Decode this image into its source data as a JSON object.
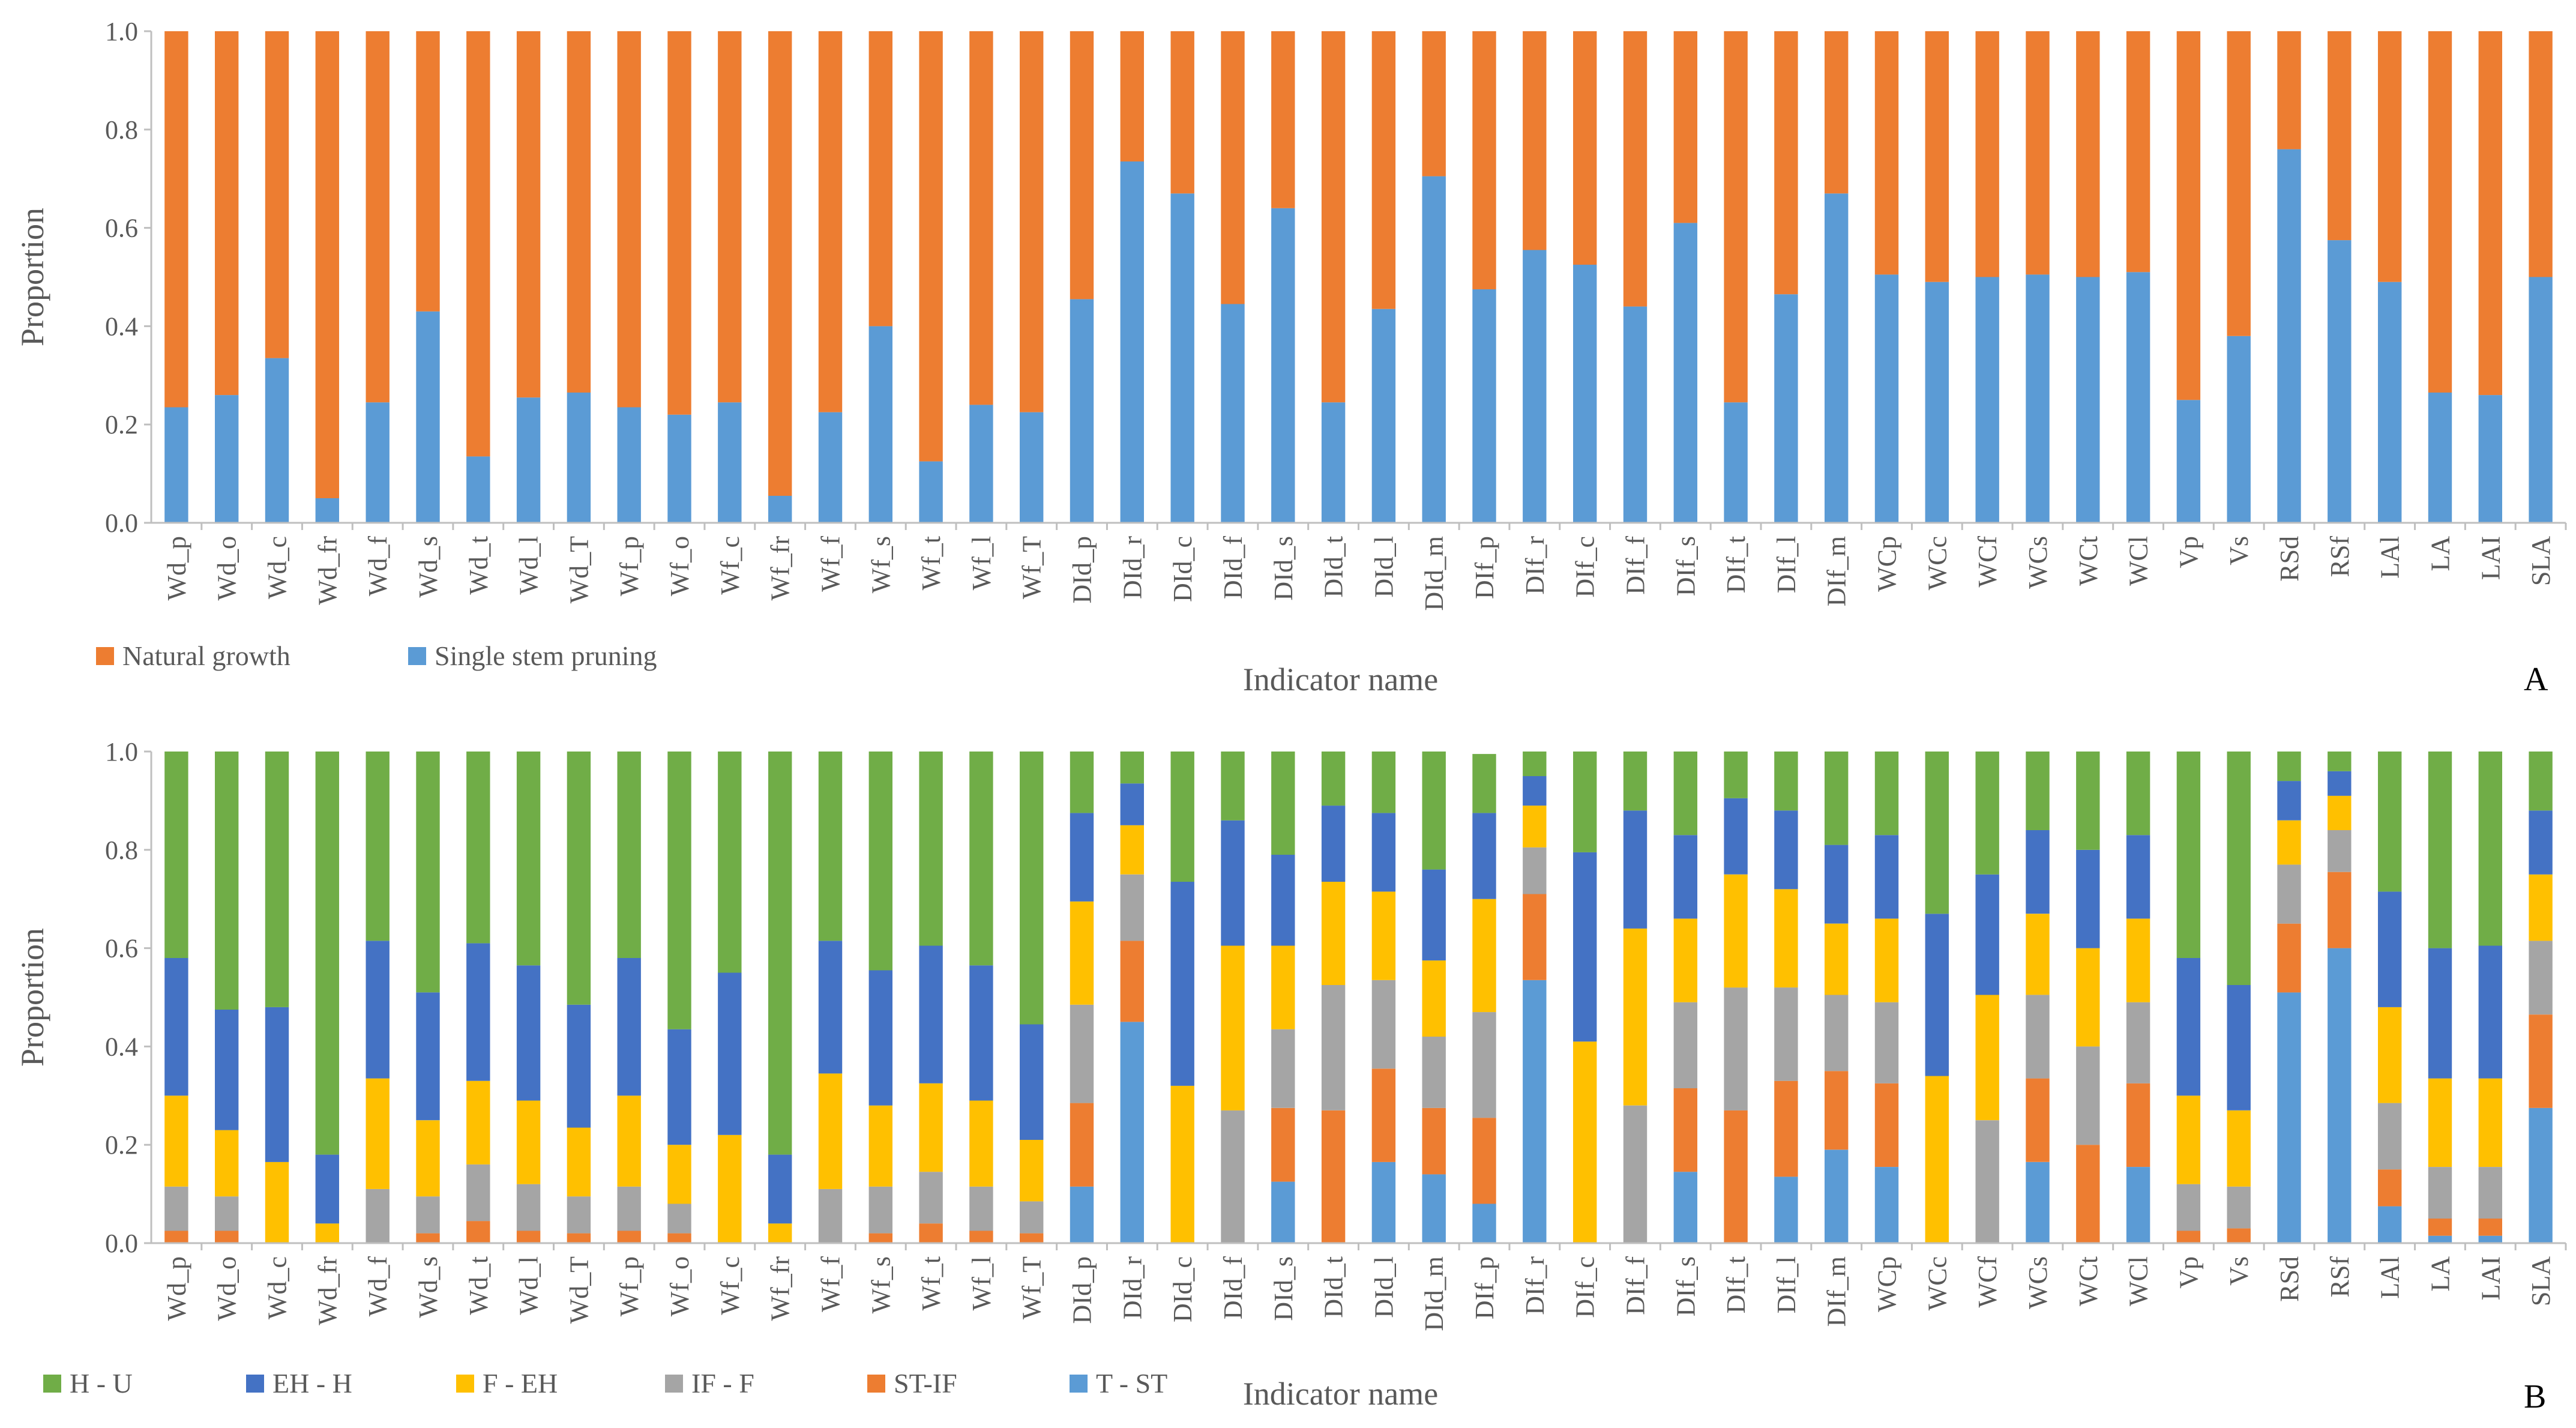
{
  "chart_data": [
    {
      "type": "bar",
      "stacked": true,
      "panel_label": "A",
      "xlabel": "Indicator name",
      "ylabel": "Proportion",
      "ylim": [
        0,
        1
      ],
      "yticks": [
        "0.0",
        "0.2",
        "0.4",
        "0.6",
        "0.8",
        "1.0"
      ],
      "grid": false,
      "legend_position": "bottom-left",
      "categories": [
        "Wd_p",
        "Wd_o",
        "Wd_c",
        "Wd_fr",
        "Wd_f",
        "Wd_s",
        "Wd_t",
        "Wd_l",
        "Wd_T",
        "Wf_p",
        "Wf_o",
        "Wf_c",
        "Wf_fr",
        "Wf_f",
        "Wf_s",
        "Wf_t",
        "Wf_l",
        "Wf_T",
        "DId_p",
        "DId_r",
        "DId_c",
        "DId_f",
        "DId_s",
        "DId_t",
        "DId_l",
        "DId_m",
        "DIf_p",
        "DIf_r",
        "DIf_c",
        "DIf_f",
        "DIf_s",
        "DIf_t",
        "DIf_l",
        "DIf_m",
        "WCp",
        "WCc",
        "WCf",
        "WCs",
        "WCt",
        "WCl",
        "Vp",
        "Vs",
        "RSd",
        "RSf",
        "LAl",
        "LA",
        "LAI",
        "SLA"
      ],
      "series": [
        {
          "name": "Single stem pruning",
          "color": "#5B9BD5",
          "values": [
            0.235,
            0.26,
            0.335,
            0.05,
            0.245,
            0.43,
            0.135,
            0.255,
            0.265,
            0.235,
            0.22,
            0.245,
            0.055,
            0.225,
            0.4,
            0.125,
            0.24,
            0.225,
            0.455,
            0.735,
            0.67,
            0.445,
            0.64,
            0.245,
            0.435,
            0.705,
            0.475,
            0.555,
            0.525,
            0.44,
            0.61,
            0.245,
            0.465,
            0.67,
            0.505,
            0.49,
            0.5,
            0.505,
            0.5,
            0.51,
            0.25,
            0.38,
            0.76,
            0.575,
            0.49,
            0.265,
            0.26,
            0.5
          ]
        },
        {
          "name": "Natural growth",
          "color": "#ED7D31",
          "values": [
            0.765,
            0.74,
            0.665,
            0.95,
            0.755,
            0.57,
            0.865,
            0.745,
            0.735,
            0.765,
            0.78,
            0.755,
            0.945,
            0.775,
            0.6,
            0.875,
            0.76,
            0.775,
            0.545,
            0.265,
            0.33,
            0.555,
            0.36,
            0.755,
            0.565,
            0.295,
            0.525,
            0.445,
            0.475,
            0.56,
            0.39,
            0.755,
            0.535,
            0.33,
            0.495,
            0.51,
            0.5,
            0.495,
            0.5,
            0.49,
            0.75,
            0.62,
            0.24,
            0.425,
            0.51,
            0.735,
            0.74,
            0.5
          ]
        }
      ]
    },
    {
      "type": "bar",
      "stacked": true,
      "panel_label": "B",
      "xlabel": "Indicator name",
      "ylabel": "Proportion",
      "ylim": [
        0,
        1
      ],
      "yticks": [
        "0.0",
        "0.2",
        "0.4",
        "0.6",
        "0.8",
        "1.0"
      ],
      "grid": false,
      "legend_position": "bottom-left",
      "categories": [
        "Wd_p",
        "Wd_o",
        "Wd_c",
        "Wd_fr",
        "Wd_f",
        "Wd_s",
        "Wd_t",
        "Wd_l",
        "Wd_T",
        "Wf_p",
        "Wf_o",
        "Wf_c",
        "Wf_fr",
        "Wf_f",
        "Wf_s",
        "Wf_t",
        "Wf_l",
        "Wf_T",
        "DId_p",
        "DId_r",
        "DId_c",
        "DId_f",
        "DId_s",
        "DId_t",
        "DId_l",
        "DId_m",
        "DIf_p",
        "DIf_r",
        "DIf_c",
        "DIf_f",
        "DIf_s",
        "DIf_t",
        "DIf_l",
        "DIf_m",
        "WCp",
        "WCc",
        "WCf",
        "WCs",
        "WCt",
        "WCl",
        "Vp",
        "Vs",
        "RSd",
        "RSf",
        "LAl",
        "LA",
        "LAI",
        "SLA"
      ],
      "series": [
        {
          "name": "T - ST",
          "color": "#5B9BD5",
          "values": [
            0,
            0,
            0,
            0,
            0,
            0,
            0,
            0,
            0,
            0,
            0,
            0,
            0,
            0,
            0,
            0,
            0,
            0,
            0.115,
            0.45,
            0,
            0,
            0.125,
            0,
            0.165,
            0.14,
            0.08,
            0.535,
            0,
            0,
            0.145,
            0,
            0.135,
            0.19,
            0.155,
            0,
            0,
            0.165,
            0,
            0.155,
            0,
            0,
            0.51,
            0.6,
            0.075,
            0.015,
            0.015,
            0.275
          ]
        },
        {
          "name": "ST-IF",
          "color": "#ED7D31",
          "values": [
            0.025,
            0.025,
            0,
            0,
            0,
            0.02,
            0.045,
            0.025,
            0.02,
            0.025,
            0.02,
            0,
            0,
            0,
            0.02,
            0.04,
            0.025,
            0.02,
            0.17,
            0.165,
            0,
            0,
            0.15,
            0.27,
            0.19,
            0.135,
            0.175,
            0.175,
            0,
            0,
            0.17,
            0.27,
            0.195,
            0.16,
            0.17,
            0,
            0,
            0.17,
            0.2,
            0.17,
            0.025,
            0.03,
            0.14,
            0.155,
            0.075,
            0.035,
            0.035,
            0.19
          ]
        },
        {
          "name": "IF - F",
          "color": "#A5A5A5",
          "values": [
            0.09,
            0.07,
            0,
            0,
            0.11,
            0.075,
            0.115,
            0.095,
            0.075,
            0.09,
            0.06,
            0,
            0,
            0.11,
            0.095,
            0.105,
            0.09,
            0.065,
            0.2,
            0.135,
            0,
            0.27,
            0.16,
            0.255,
            0.18,
            0.145,
            0.215,
            0.095,
            0,
            0.28,
            0.175,
            0.25,
            0.19,
            0.155,
            0.165,
            0,
            0.25,
            0.17,
            0.2,
            0.165,
            0.095,
            0.085,
            0.12,
            0.085,
            0.135,
            0.105,
            0.105,
            0.15
          ]
        },
        {
          "name": "F - EH",
          "color": "#FFC000",
          "values": [
            0.185,
            0.135,
            0.165,
            0.04,
            0.225,
            0.155,
            0.17,
            0.17,
            0.14,
            0.185,
            0.12,
            0.22,
            0.04,
            0.235,
            0.165,
            0.18,
            0.175,
            0.125,
            0.21,
            0.1,
            0.32,
            0.335,
            0.17,
            0.21,
            0.18,
            0.155,
            0.23,
            0.085,
            0.41,
            0.36,
            0.17,
            0.23,
            0.2,
            0.145,
            0.17,
            0.34,
            0.255,
            0.165,
            0.2,
            0.17,
            0.18,
            0.155,
            0.09,
            0.07,
            0.195,
            0.18,
            0.18,
            0.135
          ]
        },
        {
          "name": "EH - H",
          "color": "#4472C4",
          "values": [
            0.28,
            0.245,
            0.315,
            0.14,
            0.28,
            0.26,
            0.28,
            0.275,
            0.25,
            0.28,
            0.235,
            0.33,
            0.14,
            0.27,
            0.275,
            0.28,
            0.275,
            0.235,
            0.18,
            0.085,
            0.415,
            0.255,
            0.185,
            0.155,
            0.16,
            0.185,
            0.175,
            0.06,
            0.385,
            0.24,
            0.17,
            0.155,
            0.16,
            0.16,
            0.17,
            0.33,
            0.245,
            0.17,
            0.2,
            0.17,
            0.28,
            0.255,
            0.08,
            0.05,
            0.235,
            0.265,
            0.27,
            0.13
          ]
        },
        {
          "name": "H - U",
          "color": "#70AD47",
          "values": [
            0.42,
            0.525,
            0.52,
            0.82,
            0.385,
            0.49,
            0.39,
            0.435,
            0.515,
            0.42,
            0.565,
            0.45,
            0.82,
            0.385,
            0.445,
            0.395,
            0.435,
            0.555,
            0.125,
            0.065,
            0.265,
            0.14,
            0.21,
            0.11,
            0.125,
            0.24,
            0.12,
            0.05,
            0.205,
            0.12,
            0.17,
            0.095,
            0.12,
            0.19,
            0.17,
            0.33,
            0.25,
            0.16,
            0.2,
            0.17,
            0.42,
            0.475,
            0.06,
            0.04,
            0.285,
            0.4,
            0.395,
            0.12
          ]
        }
      ]
    }
  ]
}
